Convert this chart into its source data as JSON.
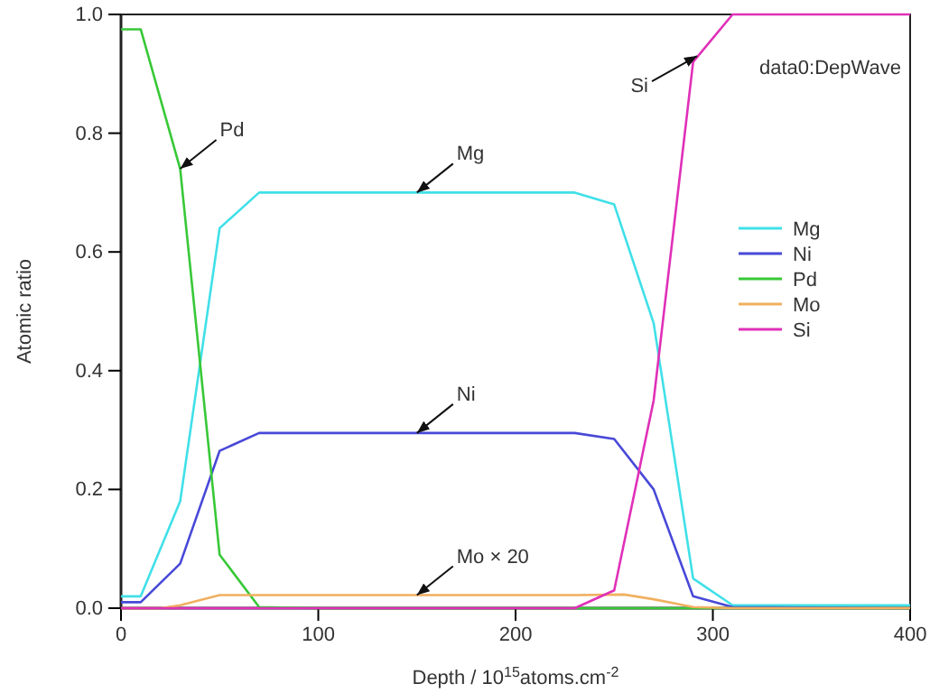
{
  "chart_data": {
    "type": "line",
    "xlabel": "Depth / 10$^{15}$atoms.cm$^{-2}$",
    "ylabel": "Atomic ratio",
    "xlim": [
      0,
      400
    ],
    "xticks": [
      0,
      100,
      200,
      300,
      400
    ],
    "ylim": [
      0,
      1
    ],
    "yticks": [
      {
        "value": 0,
        "label": "0.0"
      },
      {
        "value": 0.2,
        "label": "0.2"
      },
      {
        "value": 0.4,
        "label": "0.4"
      },
      {
        "value": 0.6,
        "label": "0.6"
      },
      {
        "value": 0.8,
        "label": "0.8"
      },
      {
        "value": 1,
        "label": "1.0"
      }
    ],
    "grid": false,
    "legend": "right",
    "line_style": "solid",
    "marker": "none",
    "annotations": [
      "data0:DepWave",
      {
        "text": "Pd",
        "x": 30,
        "y": 0.74
      },
      {
        "text": "Mg",
        "x": 150,
        "y": 0.7
      },
      {
        "text": "Ni",
        "x": 150,
        "y": 0.295
      },
      {
        "text": "Mo × 20",
        "x": 150,
        "y": 0.022
      },
      {
        "text": "Si",
        "x": 292,
        "y": 0.93
      }
    ],
    "series": [
      {
        "name": "Mg",
        "color": "#40e0e8",
        "x": [
          0,
          10,
          30,
          50,
          70,
          230,
          250,
          270,
          290,
          310,
          400
        ],
        "values": [
          0.02,
          0.02,
          0.18,
          0.64,
          0.7,
          0.7,
          0.68,
          0.48,
          0.05,
          0.005,
          0.005
        ]
      },
      {
        "name": "Ni",
        "color": "#4848d8",
        "x": [
          0,
          10,
          30,
          50,
          70,
          230,
          250,
          270,
          290,
          310,
          400
        ],
        "values": [
          0.01,
          0.01,
          0.075,
          0.265,
          0.295,
          0.295,
          0.285,
          0.2,
          0.02,
          0.002,
          0
        ]
      },
      {
        "name": "Pd",
        "color": "#38c838",
        "x": [
          0,
          10,
          30,
          50,
          70,
          100,
          400
        ],
        "values": [
          0.975,
          0.975,
          0.74,
          0.09,
          0.002,
          0,
          0
        ]
      },
      {
        "name": "Mo",
        "color": "#f0b060",
        "x": [
          0,
          20,
          30,
          50,
          230,
          255,
          270,
          290,
          310,
          400
        ],
        "values": [
          0,
          0,
          0.005,
          0.022,
          0.022,
          0.023,
          0.015,
          0.002,
          0,
          0
        ]
      },
      {
        "name": "Si",
        "color": "#e030b8",
        "x": [
          0,
          230,
          250,
          270,
          290,
          310,
          400
        ],
        "values": [
          0,
          0,
          0.03,
          0.35,
          0.92,
          1,
          1
        ]
      }
    ]
  }
}
